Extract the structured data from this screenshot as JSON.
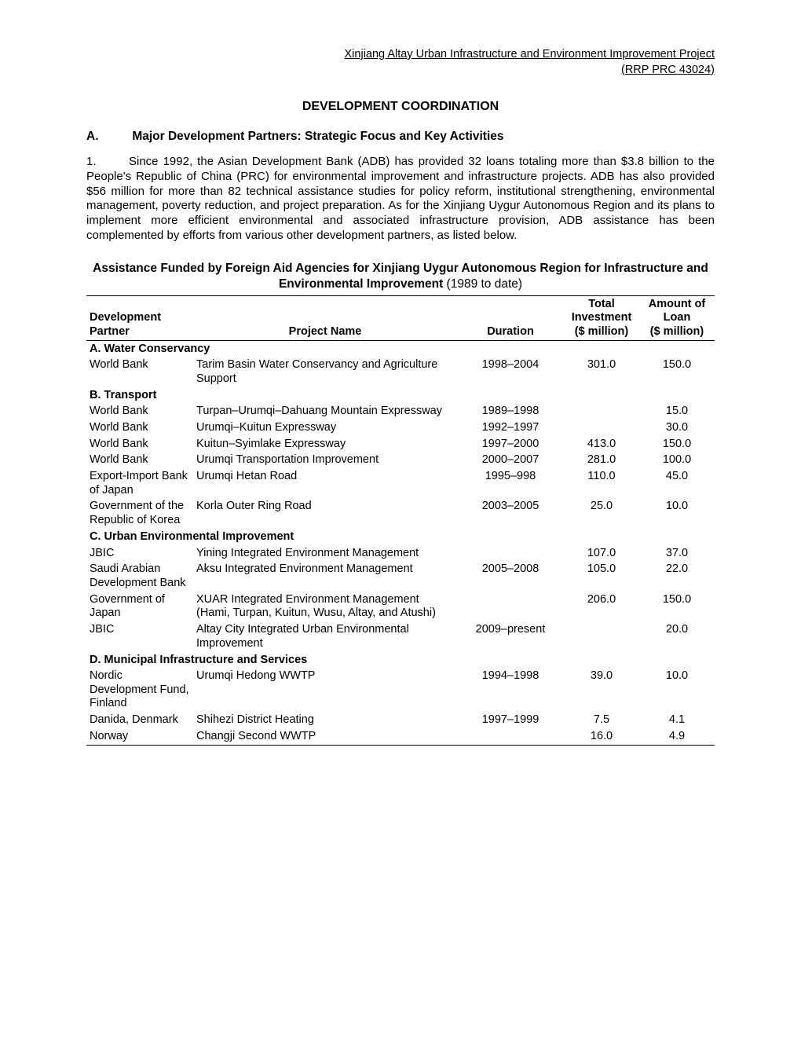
{
  "header_link": "Xinjiang Altay Urban Infrastructure and Environment Improvement Project<br>(RRP PRC 43024)",
  "title": "DEVELOPMENT COORDINATION",
  "sectionA": {
    "letter": "A.",
    "heading": "Major Development Partners: Strategic Focus and Key Activities"
  },
  "para1": {
    "num": "1.",
    "text": "Since 1992, the Asian Development Bank (ADB) has provided 32 loans totaling more than $3.8 billion to the People's Republic of China (PRC) for environmental improvement and infrastructure projects. ADB has also provided $56 million for more than 82 technical assistance studies for policy reform, institutional strengthening, environmental management, poverty reduction, and project preparation. As for the Xinjiang Uygur Autonomous Region and its plans to implement more efficient environmental and associated infrastructure provision, ADB assistance has been complemented by efforts from various other development partners, as listed below."
  },
  "table_title_bold": "Assistance Funded by Foreign Aid Agencies for Xinjiang Uygur Autonomous Region for Infrastructure and Environmental Improvement",
  "table_title_tail": " (1989 to date)",
  "thead": {
    "partner": "Development<br>Partner",
    "project": "Project Name",
    "duration": "Duration",
    "invest": "Total<br>Investment<br>($ million)",
    "loan": "Amount of<br>Loan<br>($ million)"
  },
  "rows": [
    {
      "cat": true,
      "partner": "A. Water Conservancy"
    },
    {
      "partner": "World Bank",
      "project": "Tarim Basin Water Conservancy and Agriculture Support",
      "duration": "1998–2004",
      "invest": "301.0",
      "loan": "150.0"
    },
    {
      "cat": true,
      "partner": "B. Transport"
    },
    {
      "partner": "World Bank",
      "project": "Turpan–Urumqi–Dahuang Mountain Expressway",
      "duration": "1989–1998",
      "invest": "",
      "loan": "15.0"
    },
    {
      "partner": "World Bank",
      "project": "Urumqi–Kuitun Expressway",
      "duration": "1992–1997",
      "invest": "",
      "loan": "30.0"
    },
    {
      "partner": "World Bank",
      "project": "Kuitun–Syimlake Expressway",
      "duration": "1997–2000",
      "invest": "413.0",
      "loan": "150.0"
    },
    {
      "partner": "World Bank",
      "project": "Urumqi Transportation Improvement",
      "duration": "2000–2007",
      "invest": "281.0",
      "loan": "100.0"
    },
    {
      "partner": "Export-Import Bank of Japan",
      "project": "Urumqi Hetan Road",
      "duration": "1995–998",
      "invest": "110.0",
      "loan": "45.0"
    },
    {
      "partner": "Government of the Republic of Korea",
      "project": "Korla Outer Ring Road",
      "duration": "2003–2005",
      "invest": "25.0",
      "loan": "10.0"
    },
    {
      "cat": true,
      "partner": "C. Urban Environmental Improvement"
    },
    {
      "partner": "JBIC",
      "project": "Yining Integrated Environment Management",
      "duration": "",
      "invest": "107.0",
      "loan": "37.0"
    },
    {
      "partner": "Saudi Arabian Development Bank",
      "project": "Aksu Integrated Environment Management",
      "duration": "2005–2008",
      "invest": "105.0",
      "loan": "22.0"
    },
    {
      "partner": "Government of Japan",
      "project": "XUAR Integrated Environment Management (Hami, Turpan, Kuitun, Wusu, Altay, and Atushi)",
      "duration": "",
      "invest": "206.0",
      "loan": "150.0"
    },
    {
      "partner": "JBIC",
      "project": "Altay City Integrated Urban Environmental Improvement",
      "duration": "2009–present",
      "invest": "",
      "loan": "20.0"
    },
    {
      "cat": true,
      "partner": "D. Municipal Infrastructure and Services"
    },
    {
      "partner": "Nordic Development Fund, Finland",
      "project": "Urumqi Hedong WWTP",
      "duration": "1994–1998",
      "invest": "39.0",
      "loan": "10.0"
    },
    {
      "partner": "Danida, Denmark",
      "project": "Shihezi District Heating",
      "duration": "1997–1999",
      "invest": "7.5",
      "loan": "4.1"
    },
    {
      "partner": "Norway",
      "project": "Changji Second WWTP",
      "duration": "",
      "invest": "16.0",
      "loan": "4.9",
      "last": true
    }
  ]
}
